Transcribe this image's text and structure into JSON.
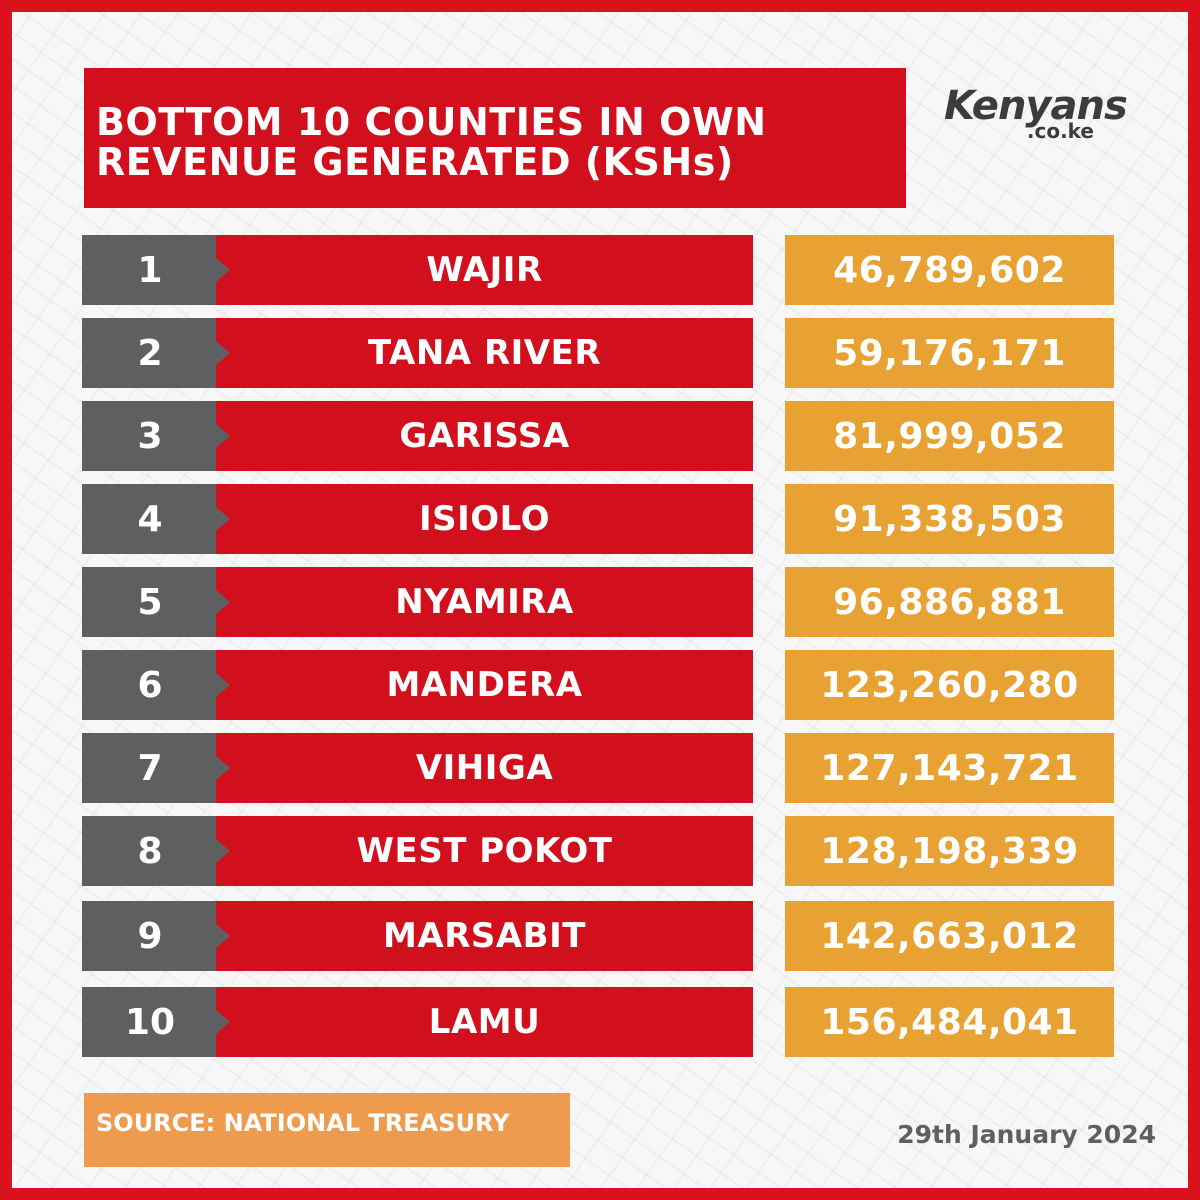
{
  "header": {
    "title_line1": "BOTTOM 10 COUNTIES IN OWN",
    "title_line2": "REVENUE GENERATED (KSHs)"
  },
  "logo": {
    "main": "Kenyans",
    "sub": ".co.ke"
  },
  "chart_data": {
    "type": "table",
    "title": "BOTTOM 10 COUNTIES IN OWN REVENUE GENERATED (KSHs)",
    "columns": [
      "rank",
      "county",
      "revenue"
    ],
    "rows": [
      {
        "rank": "1",
        "county": "WAJIR",
        "value": "46,789,602"
      },
      {
        "rank": "2",
        "county": "TANA RIVER",
        "value": "59,176,171"
      },
      {
        "rank": "3",
        "county": "GARISSA",
        "value": "81,999,052"
      },
      {
        "rank": "4",
        "county": "ISIOLO",
        "value": "91,338,503"
      },
      {
        "rank": "5",
        "county": "NYAMIRA",
        "value": "96,886,881"
      },
      {
        "rank": "6",
        "county": "MANDERA",
        "value": "123,260,280"
      },
      {
        "rank": "7",
        "county": "VIHIGA",
        "value": "127,143,721"
      },
      {
        "rank": "8",
        "county": "WEST POKOT",
        "value": "128,198,339"
      },
      {
        "rank": "9",
        "county": "MARSABIT",
        "value": "142,663,012"
      },
      {
        "rank": "10",
        "county": "LAMU",
        "value": "156,484,041"
      }
    ]
  },
  "footer": {
    "source": "SOURCE: NATIONAL TREASURY",
    "date": "29th January 2024"
  },
  "colors": {
    "frame": "#d9121d",
    "title_bg": "#d20f1c",
    "rank_bg": "#5d5f61",
    "name_bg": "#d20f1c",
    "value_bg": "#e8a233",
    "source_bg": "#ef9b4d"
  }
}
